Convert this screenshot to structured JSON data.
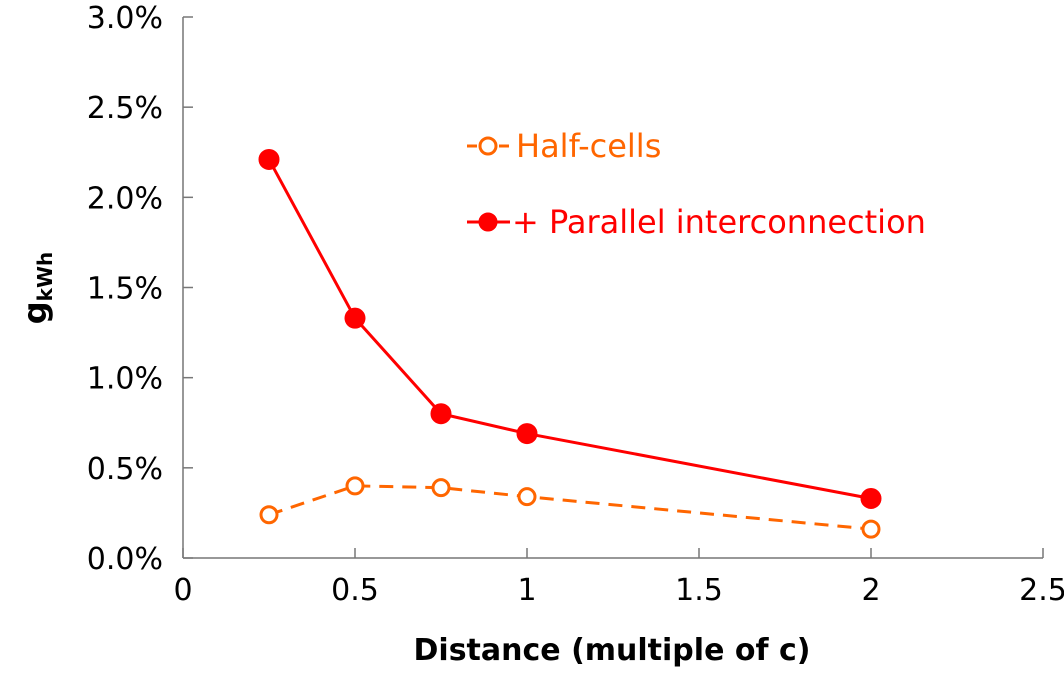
{
  "chart_data": {
    "type": "line",
    "title": "",
    "xlabel": "Distance (multiple of c)",
    "ylabel": "g",
    "ylabel_subscript": "kWh",
    "xlim": [
      0,
      2.5
    ],
    "ylim": [
      0,
      0.03
    ],
    "x_ticks": [
      "0",
      "0.5",
      "1",
      "1.5",
      "2",
      "2.5"
    ],
    "y_ticks": [
      "0.0%",
      "0.5%",
      "1.0%",
      "1.5%",
      "2.0%",
      "2.5%",
      "3.0%"
    ],
    "grid": false,
    "legend_position": "top-right",
    "x": [
      0.25,
      0.5,
      0.75,
      1,
      2
    ],
    "series": [
      {
        "name": "Half-cells",
        "values": [
          0.0024,
          0.004,
          0.0039,
          0.0034,
          0.0016
        ],
        "color": "#ff6600",
        "line": "dashed",
        "marker": "open-circle"
      },
      {
        "name": "+ Parallel interconnection",
        "values": [
          0.0221,
          0.0133,
          0.008,
          0.0069,
          0.0033
        ],
        "color": "#ff0000",
        "line": "solid",
        "marker": "filled-circle"
      }
    ]
  }
}
